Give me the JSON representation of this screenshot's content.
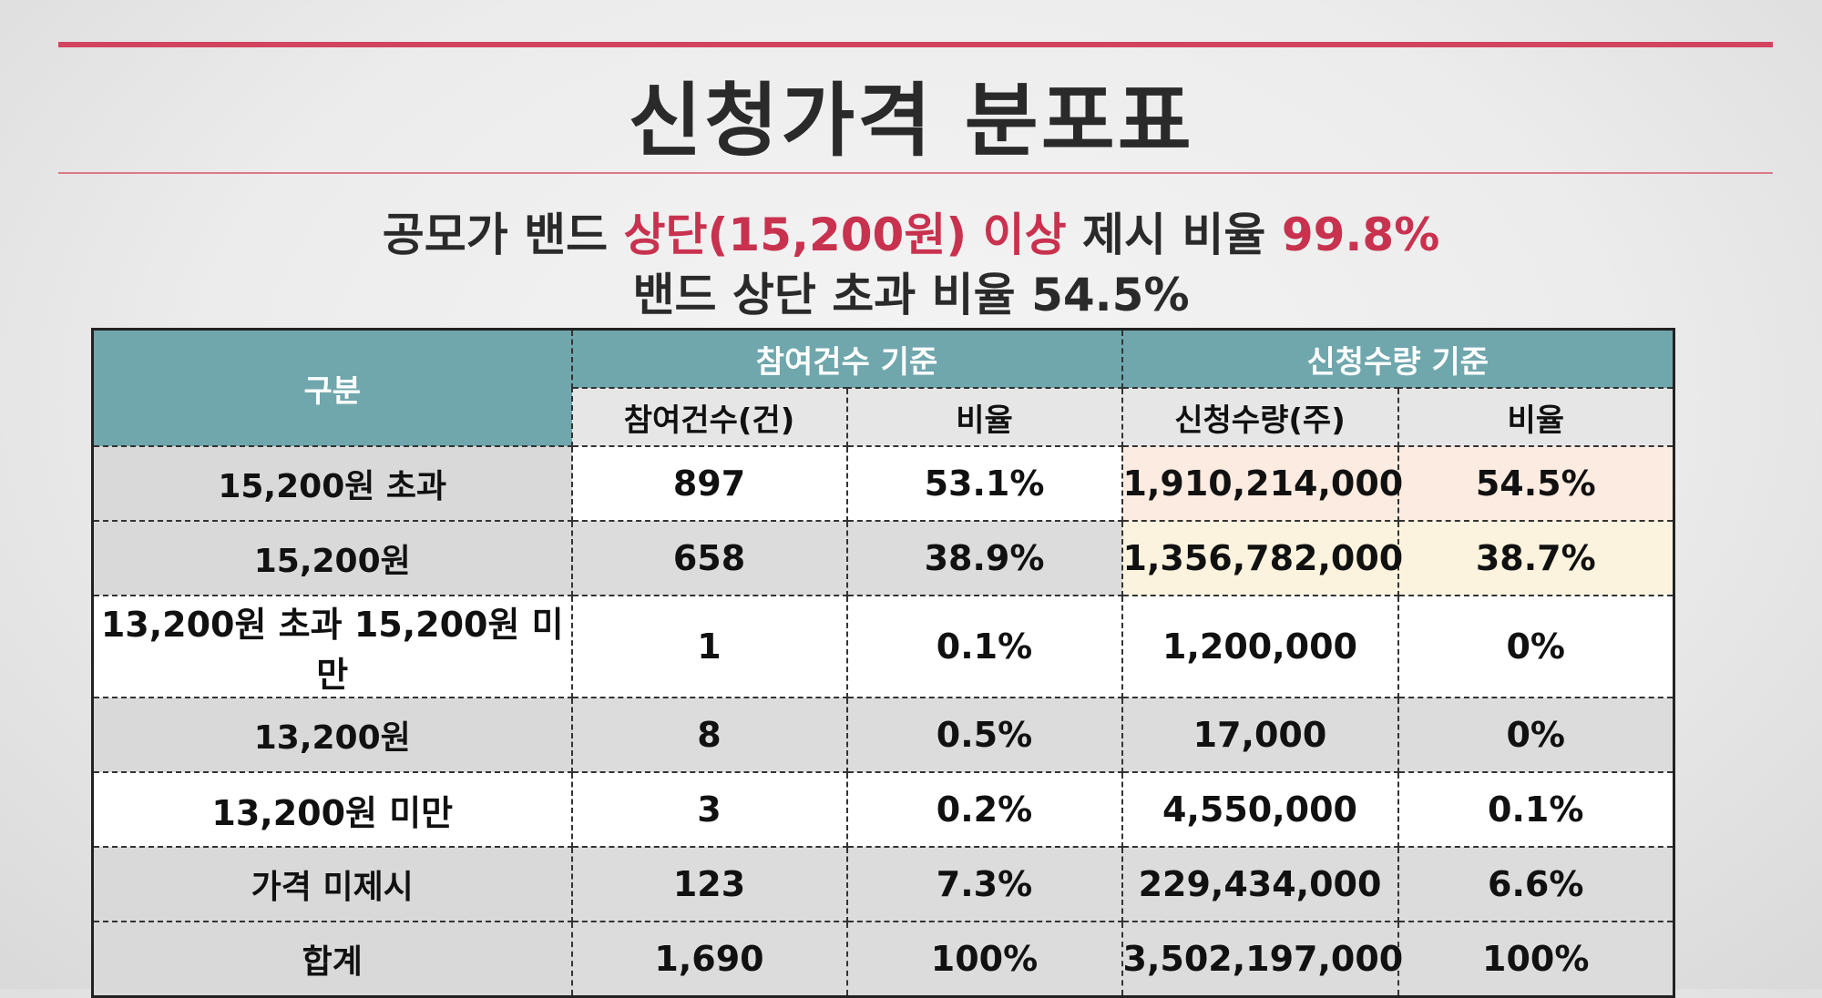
{
  "title": "신청가격 분포표",
  "subtitle": {
    "line1_pre": "공모가 밴드 ",
    "line1_red": "상단(15,200원) 이상",
    "line1_mid": " 제시 비율 ",
    "line1_pct": "99.8%",
    "line2": "밴드 상단 초과 비율 54.5%"
  },
  "colors": {
    "accent_red": "#c8324f",
    "header_teal": "#6fa7ad",
    "highlight_peach": "#fcebe0",
    "highlight_cream": "#fbf3dd"
  },
  "table": {
    "header_category": "구분",
    "group_count": "참여건수 기준",
    "group_qty": "신청수량 기준",
    "col_count": "참여건수(건)",
    "col_count_ratio": "비율",
    "col_qty": "신청수량(주)",
    "col_qty_ratio": "비율",
    "rows": [
      {
        "label": "15,200원 초과",
        "count": "897",
        "count_ratio": "53.1%",
        "qty": "1,910,214,000",
        "qty_ratio": "54.5%"
      },
      {
        "label": "15,200원",
        "count": "658",
        "count_ratio": "38.9%",
        "qty": "1,356,782,000",
        "qty_ratio": "38.7%"
      },
      {
        "label": "13,200원 초과 15,200원 미만",
        "count": "1",
        "count_ratio": "0.1%",
        "qty": "1,200,000",
        "qty_ratio": "0%"
      },
      {
        "label": "13,200원",
        "count": "8",
        "count_ratio": "0.5%",
        "qty": "17,000",
        "qty_ratio": "0%"
      },
      {
        "label": "13,200원 미만",
        "count": "3",
        "count_ratio": "0.2%",
        "qty": "4,550,000",
        "qty_ratio": "0.1%"
      },
      {
        "label": "가격 미제시",
        "count": "123",
        "count_ratio": "7.3%",
        "qty": "229,434,000",
        "qty_ratio": "6.6%"
      },
      {
        "label": "합계",
        "count": "1,690",
        "count_ratio": "100%",
        "qty": "3,502,197,000",
        "qty_ratio": "100%"
      }
    ]
  }
}
